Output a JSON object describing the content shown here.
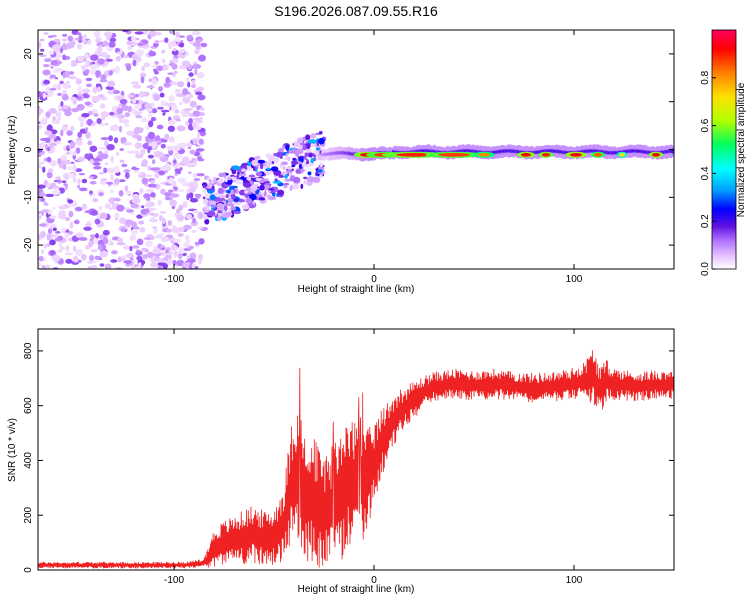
{
  "title": "S196.2026.087.09.55.R16",
  "chart_data": [
    {
      "type": "heatmap",
      "name": "spectrogram",
      "xlabel": "Height of straight line (km)",
      "ylabel": "Frequency (Hz)",
      "xlim": [
        -168,
        150
      ],
      "ylim": [
        -25,
        25
      ],
      "xticks": [
        -100,
        0,
        100
      ],
      "yticks": [
        -20,
        -10,
        0,
        10,
        20
      ],
      "grid": false,
      "colorbar": {
        "label": "Normalized spectral amplitude",
        "range": [
          0,
          1
        ],
        "ticks": [
          0.0,
          0.2,
          0.4,
          0.6,
          0.8
        ],
        "colors": [
          "#ffffff",
          "#e9c8ff",
          "#b070ff",
          "#6010e0",
          "#0000ff",
          "#00a0ff",
          "#00ffff",
          "#00ff60",
          "#b0ff00",
          "#ffe000",
          "#ff8000",
          "#ff0000",
          "#ff0060"
        ]
      },
      "features": [
        {
          "segment": "noise",
          "x_range": [
            -168,
            -85
          ],
          "freq_range": [
            -25,
            25
          ],
          "amplitude": "0.0-0.2"
        },
        {
          "segment": "scattered-echoes",
          "x_range": [
            -85,
            -25
          ],
          "freq_range": [
            -13,
            5
          ],
          "amplitude": "0.1-0.4"
        },
        {
          "segment": "trace",
          "x_range": [
            -25,
            150
          ],
          "freq_center": -0.5,
          "amplitude_peak": 0.95
        }
      ]
    },
    {
      "type": "line",
      "name": "snr",
      "xlabel": "Height of straight line (km)",
      "ylabel": "SNR (10 * v/v)",
      "xlim": [
        -168,
        150
      ],
      "ylim": [
        0,
        880
      ],
      "xticks": [
        -100,
        0,
        100
      ],
      "yticks": [
        0,
        200,
        400,
        600,
        800
      ],
      "grid": false,
      "series": [
        {
          "name": "SNR",
          "color": "#ee2222",
          "x": [
            -168,
            -150,
            -120,
            -100,
            -90,
            -85,
            -80,
            -75,
            -70,
            -65,
            -60,
            -55,
            -50,
            -45,
            -40,
            -35,
            -30,
            -25,
            -20,
            -15,
            -10,
            -5,
            0,
            5,
            10,
            15,
            20,
            25,
            30,
            40,
            50,
            60,
            70,
            80,
            90,
            100,
            105,
            110,
            113,
            116,
            120,
            130,
            140,
            150
          ],
          "values": [
            18,
            18,
            18,
            18,
            20,
            25,
            80,
            100,
            110,
            120,
            130,
            115,
            120,
            170,
            360,
            300,
            250,
            200,
            240,
            290,
            330,
            300,
            390,
            480,
            550,
            590,
            620,
            650,
            670,
            680,
            675,
            680,
            670,
            665,
            670,
            680,
            690,
            710,
            650,
            690,
            680,
            670,
            675,
            680
          ],
          "spread": [
            12,
            12,
            12,
            12,
            14,
            20,
            70,
            80,
            90,
            100,
            110,
            100,
            110,
            150,
            250,
            260,
            240,
            200,
            230,
            250,
            220,
            200,
            150,
            120,
            100,
            80,
            70,
            60,
            55,
            55,
            55,
            55,
            55,
            55,
            55,
            60,
            70,
            110,
            90,
            80,
            60,
            55,
            55,
            55
          ]
        }
      ]
    }
  ]
}
